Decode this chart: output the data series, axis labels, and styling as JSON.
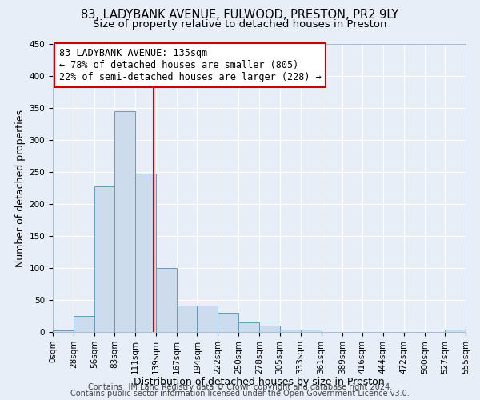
{
  "title_line1": "83, LADYBANK AVENUE, FULWOOD, PRESTON, PR2 9LY",
  "title_line2": "Size of property relative to detached houses in Preston",
  "xlabel": "Distribution of detached houses by size in Preston",
  "ylabel": "Number of detached properties",
  "bin_edges": [
    0,
    28,
    56,
    83,
    111,
    139,
    167,
    194,
    222,
    250,
    278,
    305,
    333,
    361,
    389,
    416,
    444,
    472,
    500,
    527,
    555
  ],
  "bar_heights": [
    3,
    25,
    227,
    345,
    247,
    100,
    41,
    41,
    30,
    15,
    10,
    4,
    4,
    0,
    0,
    0,
    0,
    0,
    0,
    4
  ],
  "bar_color": "#cddcec",
  "bar_edgecolor": "#6699bb",
  "vline_x": 135,
  "vline_color": "#cc0000",
  "annotation_title": "83 LADYBANK AVENUE: 135sqm",
  "annotation_line1": "← 78% of detached houses are smaller (805)",
  "annotation_line2": "22% of semi-detached houses are larger (228) →",
  "annotation_box_edgecolor": "#cc0000",
  "annotation_box_facecolor": "#ffffff",
  "ylim": [
    0,
    450
  ],
  "yticks": [
    0,
    50,
    100,
    150,
    200,
    250,
    300,
    350,
    400,
    450
  ],
  "xtick_labels": [
    "0sqm",
    "28sqm",
    "56sqm",
    "83sqm",
    "111sqm",
    "139sqm",
    "167sqm",
    "194sqm",
    "222sqm",
    "250sqm",
    "278sqm",
    "305sqm",
    "333sqm",
    "361sqm",
    "389sqm",
    "416sqm",
    "444sqm",
    "472sqm",
    "500sqm",
    "527sqm",
    "555sqm"
  ],
  "footer_line1": "Contains HM Land Registry data © Crown copyright and database right 2024.",
  "footer_line2": "Contains public sector information licensed under the Open Government Licence v3.0.",
  "background_color": "#e8eef8",
  "grid_color": "#ffffff",
  "title_fontsize": 10.5,
  "subtitle_fontsize": 9.5,
  "axis_label_fontsize": 9,
  "tick_fontsize": 7.5,
  "footer_fontsize": 7,
  "annotation_fontsize": 8.5
}
